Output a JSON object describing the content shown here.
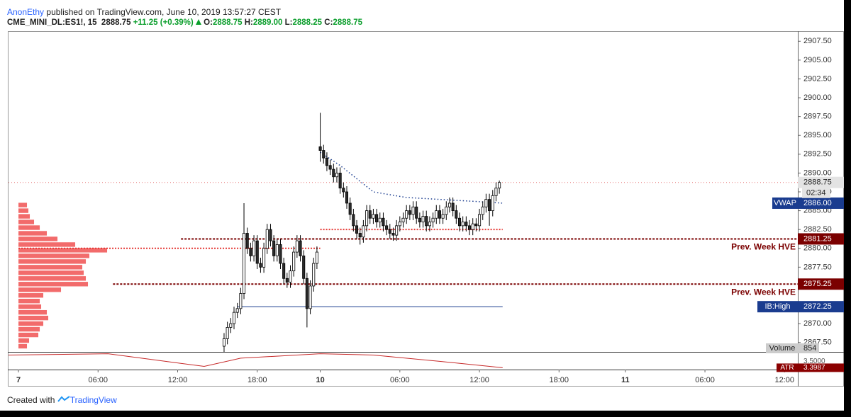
{
  "header": {
    "author": "AnonEthy",
    "published": "published on TradingView.com, June 10, 2019 13:57:27 CEST",
    "symbol": "CME_MINI_DL:ES1!, 15",
    "last": "2888.75",
    "change": "+11.25 (+0.39%)",
    "o_label": "O:",
    "o": "2888.75",
    "h_label": "H:",
    "h": "2889.00",
    "l_label": "L:",
    "l": "2888.25",
    "c_label": "C:",
    "c": "2888.75"
  },
  "chart_data": {
    "type": "candlestick",
    "xlim": [
      0,
      238
    ],
    "xticks": [
      {
        "value": 3,
        "label": "7"
      },
      {
        "value": 27,
        "label": "06:00"
      },
      {
        "value": 51,
        "label": "12:00"
      },
      {
        "value": 75,
        "label": "18:00"
      },
      {
        "value": 94,
        "label": "10"
      },
      {
        "value": 118,
        "label": "06:00"
      },
      {
        "value": 142,
        "label": "12:00"
      },
      {
        "value": 166,
        "label": "18:00"
      },
      {
        "value": 186,
        "label": "11"
      },
      {
        "value": 210,
        "label": "06:00"
      },
      {
        "value": 234,
        "label": "12:00"
      }
    ],
    "ylim": [
      2866.25,
      2908.75
    ],
    "yticks": [
      {
        "value": 2867.5,
        "label": "2867.50"
      },
      {
        "value": 2870,
        "label": "2870.00"
      },
      {
        "value": 2872.5,
        "label": "2872.50"
      },
      {
        "value": 2875,
        "label": "2875.00"
      },
      {
        "value": 2877.5,
        "label": "2877.50"
      },
      {
        "value": 2880,
        "label": "2880.00"
      },
      {
        "value": 2882.5,
        "label": "2882.50"
      },
      {
        "value": 2885,
        "label": "2885.00"
      },
      {
        "value": 2887.5,
        "label": "2887.50"
      },
      {
        "value": 2890,
        "label": "2890.00"
      },
      {
        "value": 2892.5,
        "label": "2892.50"
      },
      {
        "value": 2895,
        "label": "2895.00"
      },
      {
        "value": 2897.5,
        "label": "2897.50"
      },
      {
        "value": 2900,
        "label": "2900.00"
      },
      {
        "value": 2902.5,
        "label": "2902.50"
      },
      {
        "value": 2905,
        "label": "2905.00"
      },
      {
        "value": 2907.5,
        "label": "2907.50"
      }
    ],
    "x": [
      65,
      66,
      67,
      68,
      69,
      70,
      71,
      72,
      73,
      74,
      75,
      76,
      77,
      78,
      79,
      80,
      81,
      82,
      83,
      84,
      85,
      86,
      87,
      88,
      89,
      90,
      91,
      92,
      93,
      94,
      95,
      96,
      97,
      98,
      99,
      100,
      101,
      102,
      103,
      104,
      105,
      106,
      107,
      108,
      109,
      110,
      111,
      112,
      113,
      114,
      115,
      116,
      117,
      118,
      119,
      120,
      121,
      122,
      123,
      124,
      125,
      126,
      127,
      128,
      129,
      130,
      131,
      132,
      133,
      134,
      135,
      136,
      137,
      138,
      139,
      140,
      141,
      142,
      143,
      144,
      145,
      146,
      147,
      148
    ],
    "open": [
      2867,
      2868,
      2869.5,
      2870,
      2871.5,
      2872,
      2874,
      2882,
      2880,
      2879,
      2881,
      2878,
      2877.5,
      2880,
      2882.5,
      2881,
      2879,
      2880.5,
      2878,
      2876,
      2875.5,
      2877,
      2879.5,
      2881,
      2879,
      2876,
      2872,
      2875,
      2878,
      2893.5,
      2893,
      2892,
      2891,
      2890.5,
      2889.5,
      2890,
      2888,
      2887.5,
      2886,
      2884.5,
      2883,
      2882,
      2881.5,
      2883,
      2885,
      2884,
      2884.5,
      2883.5,
      2884,
      2883,
      2882.5,
      2882,
      2881.75,
      2883,
      2883.5,
      2884,
      2885,
      2884.5,
      2885.5,
      2884,
      2883.5,
      2884.25,
      2883,
      2883.5,
      2884,
      2885,
      2884,
      2884.5,
      2885.5,
      2886,
      2885,
      2884,
      2883,
      2883.5,
      2883,
      2882.5,
      2883.25,
      2883,
      2884.5,
      2885.5,
      2886.5,
      2885,
      2887,
      2888
    ],
    "high": [
      2868.75,
      2870.25,
      2870.75,
      2872.25,
      2872.75,
      2874.75,
      2886,
      2882.75,
      2880.75,
      2881.75,
      2881.75,
      2878.75,
      2880.75,
      2883.25,
      2883.25,
      2881.75,
      2881.25,
      2881.25,
      2878.75,
      2876.75,
      2877.75,
      2880.25,
      2881.75,
      2881.75,
      2879.75,
      2876.75,
      2875.75,
      2878.75,
      2880.25,
      2898,
      2893.75,
      2892.75,
      2891.75,
      2891.25,
      2890.75,
      2890.75,
      2888.75,
      2888.25,
      2886.75,
      2885.25,
      2883.75,
      2882.75,
      2883.75,
      2885.75,
      2885.75,
      2885.25,
      2885.25,
      2884.75,
      2884.75,
      2883.75,
      2883.25,
      2882.75,
      2883.75,
      2884.25,
      2884.75,
      2885.75,
      2885.75,
      2886.25,
      2886.25,
      2884.75,
      2885,
      2885,
      2884.25,
      2884.75,
      2885.75,
      2885.75,
      2885.25,
      2886.25,
      2886.75,
      2886.75,
      2885.75,
      2884.75,
      2884.25,
      2884.25,
      2883.75,
      2884,
      2884,
      2885.25,
      2886.25,
      2887.25,
      2887.25,
      2887.75,
      2888.75,
      2889
    ],
    "low": [
      2866.25,
      2867.25,
      2868.75,
      2869.25,
      2870.75,
      2871.25,
      2873.25,
      2879.25,
      2878.25,
      2878.25,
      2877.25,
      2876.75,
      2876.75,
      2879.25,
      2880.25,
      2878.25,
      2878.25,
      2877.25,
      2875.25,
      2874.75,
      2874.75,
      2876.25,
      2878.75,
      2878.25,
      2875.25,
      2869.5,
      2871.25,
      2874.25,
      2877.25,
      2891.5,
      2891.25,
      2890.25,
      2889.75,
      2888.75,
      2888.75,
      2887.25,
      2886.75,
      2885.25,
      2883.75,
      2882.25,
      2881.25,
      2880.5,
      2880.75,
      2882.25,
      2883.25,
      2883.25,
      2882.75,
      2882.75,
      2882.25,
      2881.75,
      2881.25,
      2881,
      2881,
      2882.25,
      2882.75,
      2883.25,
      2883.75,
      2883.75,
      2883.25,
      2882.75,
      2882.75,
      2882.25,
      2882.25,
      2882.75,
      2883.25,
      2883.25,
      2883.25,
      2883.75,
      2884.75,
      2884.25,
      2883.25,
      2882.25,
      2882.25,
      2882.25,
      2881.75,
      2881.75,
      2882.25,
      2882.25,
      2883.75,
      2884.75,
      2883,
      2884.25,
      2886.25,
      2887.25
    ],
    "close": [
      2868,
      2869.5,
      2870,
      2871.5,
      2872,
      2874,
      2882,
      2880,
      2879,
      2881,
      2878,
      2877.5,
      2880,
      2882.5,
      2881,
      2879,
      2880.5,
      2878,
      2876,
      2875.5,
      2877,
      2879.5,
      2881,
      2879,
      2876,
      2872,
      2875,
      2878,
      2879.5,
      2893,
      2892,
      2891,
      2890.5,
      2889.5,
      2890,
      2888,
      2887.5,
      2886,
      2884.5,
      2883,
      2882,
      2881.5,
      2883,
      2885,
      2884,
      2884.5,
      2883.5,
      2884,
      2883,
      2882.5,
      2882,
      2881.75,
      2883,
      2883.5,
      2884,
      2885,
      2884.5,
      2885.5,
      2884,
      2883.5,
      2884.25,
      2883,
      2883.5,
      2884,
      2885,
      2884,
      2884.5,
      2885.5,
      2886,
      2885,
      2884,
      2883,
      2883.5,
      2883,
      2882.5,
      2883.25,
      2883,
      2884.5,
      2885.5,
      2886.5,
      2885,
      2887,
      2888,
      2888.75
    ],
    "up_color": "#ffffff",
    "down_color": "#2b2b2b",
    "border_color": "#000000",
    "last_price": {
      "value": 2888.75,
      "label": "2888.75",
      "countdown": "02:34",
      "color": "#e3e3e3"
    },
    "levels": [
      {
        "name": "VWAP",
        "value": 2886,
        "label": "2886.00",
        "color": "#1a3c8f"
      },
      {
        "name": "Prev. Week HVE",
        "value": 2881.25,
        "label": "2881.25",
        "color": "#7b0000",
        "x_start": 52
      },
      {
        "name": "Prev. Week HVE",
        "value": 2875.25,
        "label": "2875.25",
        "color": "#7b0000",
        "x_start": 31.5
      },
      {
        "name": "IB:High",
        "value": 2872.25,
        "label": "2872.25",
        "color": "#1a3c8f",
        "x_start": 69,
        "x_end": 149
      }
    ],
    "vwap": {
      "x": [
        94,
        100,
        110,
        120,
        130,
        140,
        149
      ],
      "values": [
        2892.75,
        2891,
        2887.5,
        2886.75,
        2886.5,
        2886.25,
        2886
      ],
      "color": "#1a3c8f"
    },
    "poc_lines": {
      "color": "#e53935",
      "values": [
        2880,
        2882.5
      ],
      "x_start": [
        3,
        94
      ],
      "x_end": [
        94,
        149
      ]
    },
    "volume_profile": {
      "color": "#f26b6b",
      "x0": 3,
      "lim": [
        0,
        200
      ],
      "prices": [
        2885.75,
        2885,
        2884.25,
        2883.5,
        2882.75,
        2882,
        2881.25,
        2880.5,
        2879.75,
        2879,
        2878.25,
        2877.5,
        2876.75,
        2876,
        2875.25,
        2874.5,
        2873.75,
        2873,
        2872.25,
        2871.5,
        2870.75,
        2870,
        2869.25,
        2868.5,
        2867.75,
        2867
      ],
      "values": [
        12,
        14,
        16,
        22,
        30,
        40,
        55,
        80,
        125,
        100,
        95,
        90,
        92,
        95,
        98,
        60,
        35,
        30,
        32,
        40,
        42,
        35,
        30,
        28,
        15,
        12
      ]
    },
    "volume": {
      "name": "Volume",
      "value": 854
    },
    "atr": {
      "name": "ATR",
      "color": "#c62828",
      "ylim": [
        3.37,
        3.65
      ],
      "yticks": [
        {
          "value": 3.5,
          "label": "3.5000"
        }
      ],
      "last": 3.3987,
      "x": [
        0,
        30,
        59,
        70,
        94,
        110,
        130,
        149
      ],
      "values": [
        3.6,
        3.62,
        3.42,
        3.55,
        3.62,
        3.6,
        3.5,
        3.4
      ]
    }
  },
  "footer": {
    "created": "Created with",
    "brand": "TradingView"
  }
}
